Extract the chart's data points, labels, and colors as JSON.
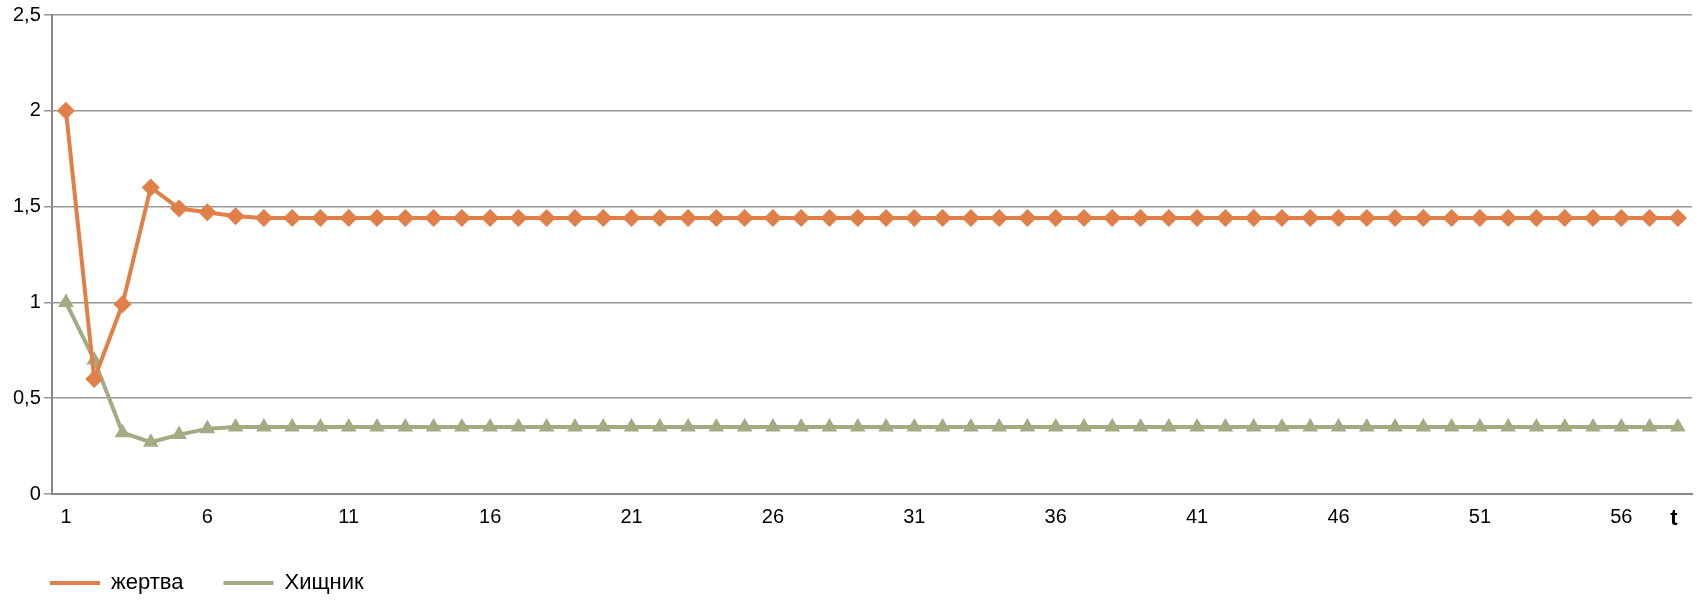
{
  "chart_data": {
    "type": "line",
    "xlabel": "t",
    "categories": [
      "1",
      null,
      null,
      null,
      null,
      "6",
      null,
      null,
      null,
      null,
      "11",
      null,
      null,
      null,
      null,
      "16",
      null,
      null,
      null,
      null,
      "21",
      null,
      null,
      null,
      null,
      "26",
      null,
      null,
      null,
      null,
      "31",
      null,
      null,
      null,
      null,
      "36",
      null,
      null,
      null,
      null,
      "41",
      null,
      null,
      null,
      null,
      "46",
      null,
      null,
      null,
      null,
      "51",
      null,
      null,
      null,
      null,
      "56",
      null,
      null
    ],
    "series": [
      {
        "name": "жертва",
        "color": "#e07f47",
        "marker": "diamond",
        "values": [
          2,
          0.6,
          0.99,
          1.6,
          1.49,
          1.47,
          1.45,
          1.44,
          1.44,
          1.44,
          1.44,
          1.44,
          1.44,
          1.44,
          1.44,
          1.44,
          1.44,
          1.44,
          1.44,
          1.44,
          1.44,
          1.44,
          1.44,
          1.44,
          1.44,
          1.44,
          1.44,
          1.44,
          1.44,
          1.44,
          1.44,
          1.44,
          1.44,
          1.44,
          1.44,
          1.44,
          1.44,
          1.44,
          1.44,
          1.44,
          1.44,
          1.44,
          1.44,
          1.44,
          1.44,
          1.44,
          1.44,
          1.44,
          1.44,
          1.44,
          1.44,
          1.44,
          1.44,
          1.44,
          1.44,
          1.44,
          1.44,
          1.44
        ]
      },
      {
        "name": "Хищник",
        "color": "#a3ab82",
        "marker": "triangle",
        "values": [
          1,
          0.7,
          0.32,
          0.27,
          0.31,
          0.34,
          0.35,
          0.35,
          0.35,
          0.35,
          0.35,
          0.35,
          0.35,
          0.35,
          0.35,
          0.35,
          0.35,
          0.35,
          0.35,
          0.35,
          0.35,
          0.35,
          0.35,
          0.35,
          0.35,
          0.35,
          0.35,
          0.35,
          0.35,
          0.35,
          0.35,
          0.35,
          0.35,
          0.35,
          0.35,
          0.35,
          0.35,
          0.35,
          0.35,
          0.35,
          0.35,
          0.35,
          0.35,
          0.35,
          0.35,
          0.35,
          0.35,
          0.35,
          0.35,
          0.35,
          0.35,
          0.35,
          0.35,
          0.35,
          0.35,
          0.35,
          0.35,
          0.35
        ]
      }
    ],
    "ylim": [
      0,
      2.5
    ],
    "yticks": [
      {
        "value": 0,
        "label": "0"
      },
      {
        "value": 0.5,
        "label": "0,5"
      },
      {
        "value": 1,
        "label": "1"
      },
      {
        "value": 1.5,
        "label": "1,5"
      },
      {
        "value": 2,
        "label": "2"
      },
      {
        "value": 2.5,
        "label": "2,5"
      }
    ],
    "grid": "y",
    "legend": "bottom left",
    "line_style": "solid"
  }
}
